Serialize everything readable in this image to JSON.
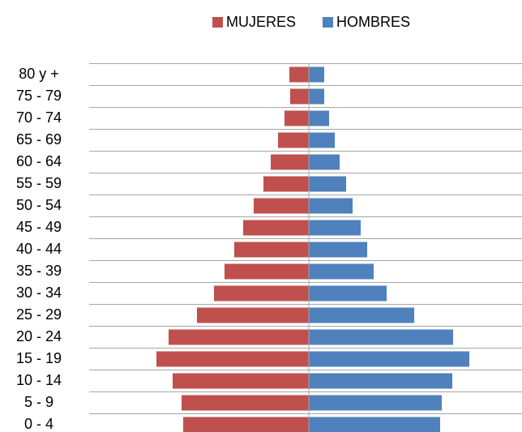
{
  "chart_data": {
    "type": "pyramid",
    "categories": [
      "80 y +",
      "75 - 79",
      "70 - 74",
      "65 - 69",
      "60 - 64",
      "55 - 59",
      "50 - 54",
      "45 - 49",
      "40 - 44",
      "35 - 39",
      "30 - 34",
      "25 - 29",
      "20 - 24",
      "15 - 19",
      "10 - 14",
      "5 - 9",
      "0 -  4"
    ],
    "series": [
      {
        "name": "MUJERES",
        "color": "#c0504d",
        "values": [
          24,
          23,
          30,
          38,
          47,
          56,
          68,
          81,
          92,
          104,
          117,
          138,
          173,
          188,
          168,
          157,
          155
        ]
      },
      {
        "name": "HOMBRES",
        "color": "#4f81bd",
        "values": [
          19,
          19,
          25,
          32,
          38,
          46,
          54,
          64,
          72,
          80,
          96,
          130,
          178,
          198,
          177,
          164,
          162
        ]
      }
    ],
    "xlim": [
      0,
      271
    ],
    "grid": true,
    "legend": "top"
  }
}
